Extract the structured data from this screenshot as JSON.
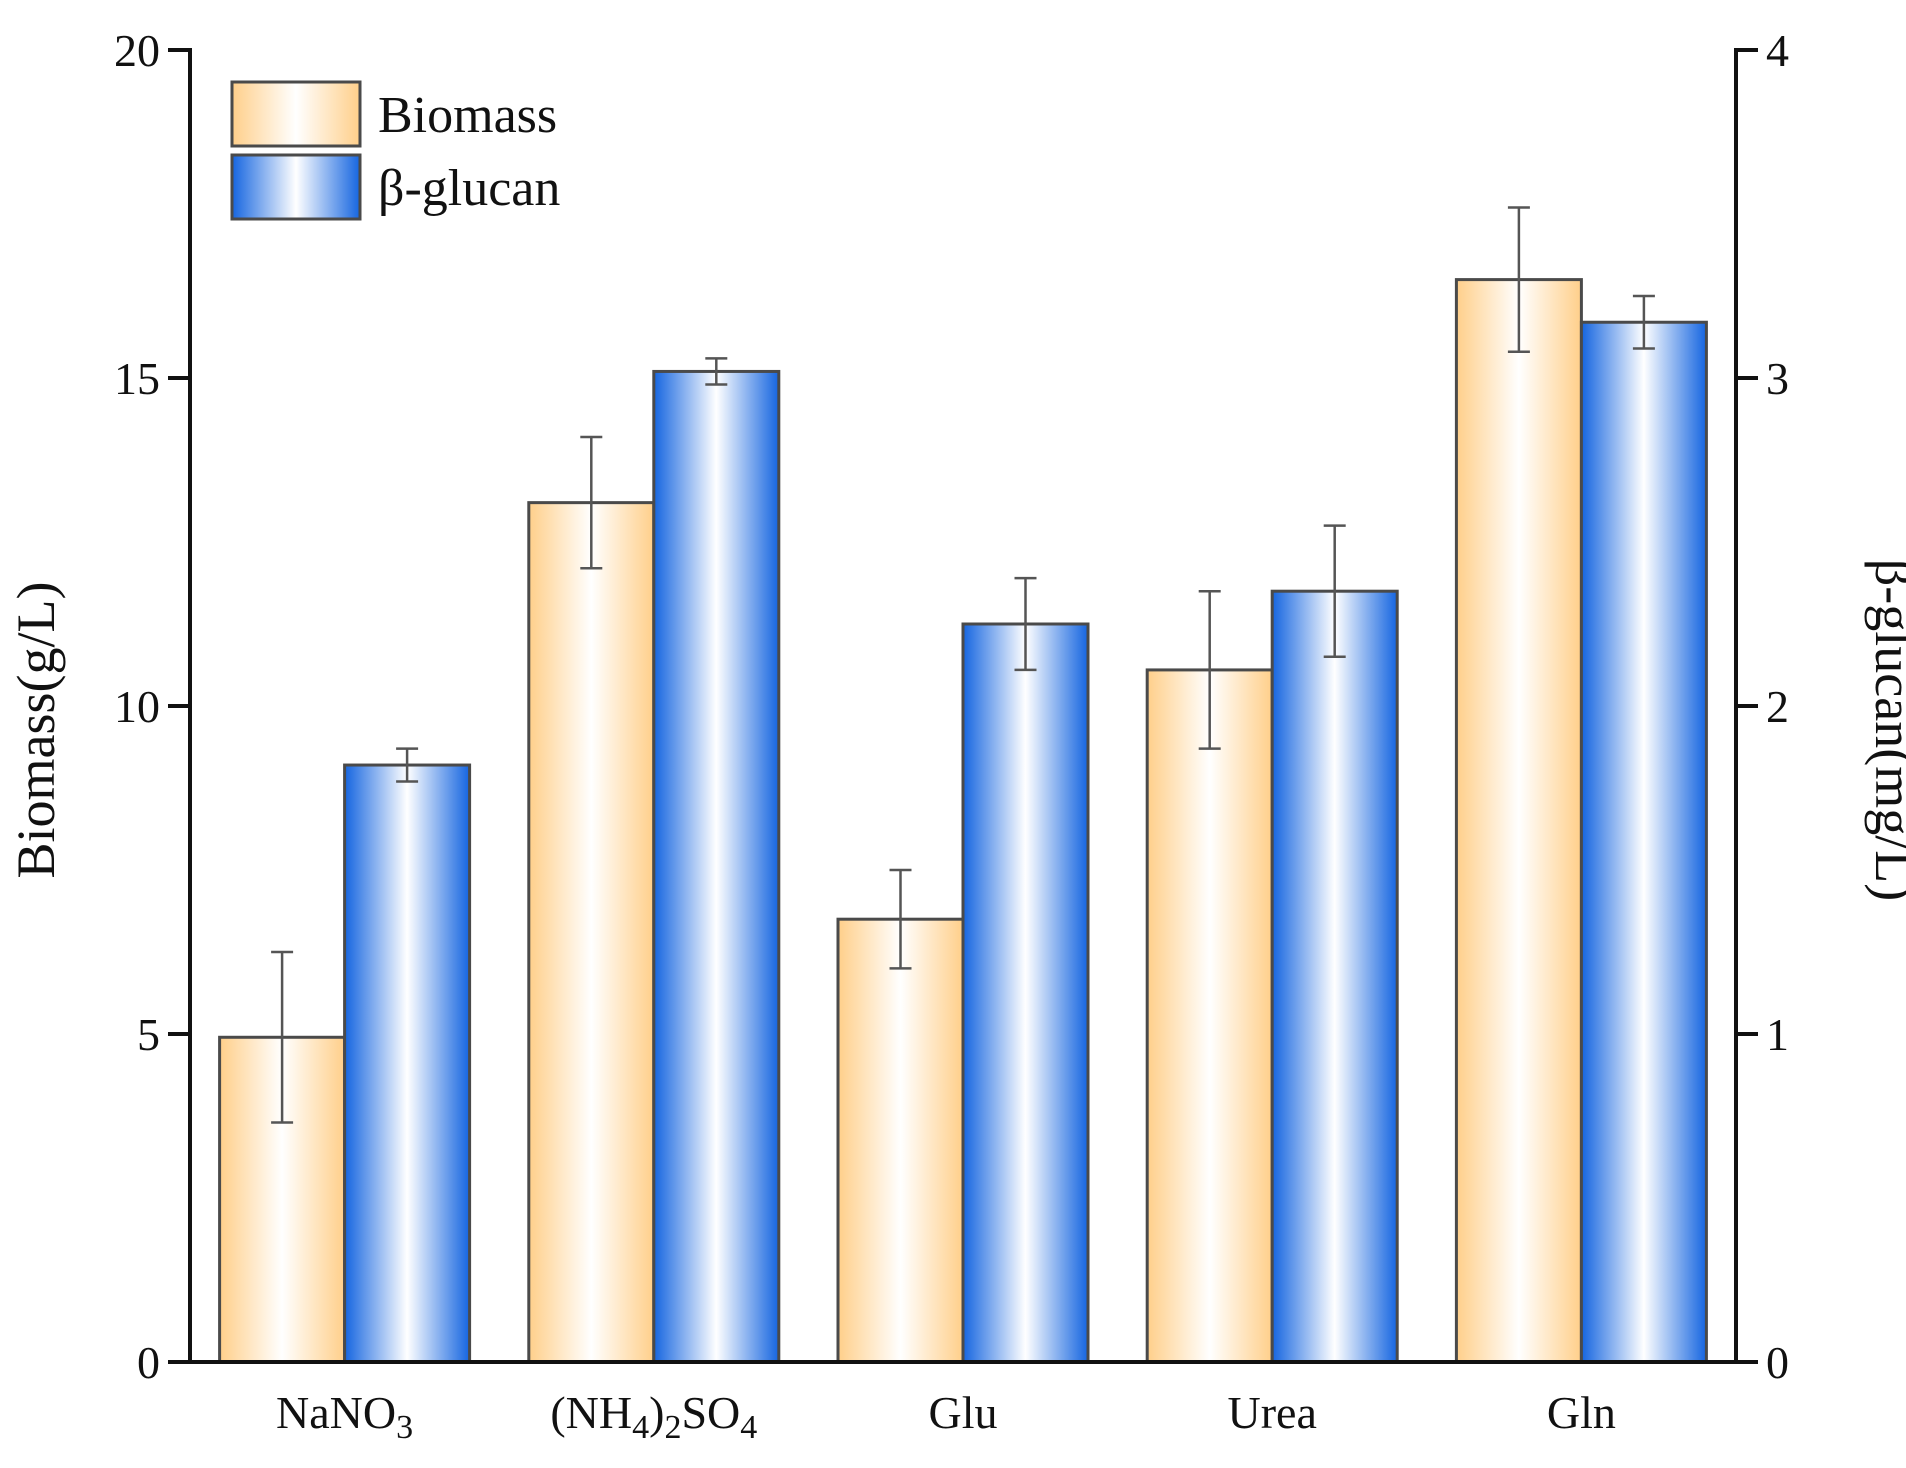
{
  "chart_data": {
    "type": "bar",
    "categories": [
      "NaNO3",
      "(NH4)2SO4",
      "Glu",
      "Urea",
      "Gln"
    ],
    "category_labels": [
      {
        "parts": [
          {
            "t": "NaNO",
            "s": "n"
          },
          {
            "t": "3",
            "s": "sub"
          }
        ]
      },
      {
        "parts": [
          {
            "t": "(NH",
            "s": "n"
          },
          {
            "t": "4",
            "s": "sub"
          },
          {
            "t": ")",
            "s": "n"
          },
          {
            "t": "2",
            "s": "sub"
          },
          {
            "t": "SO",
            "s": "n"
          },
          {
            "t": "4",
            "s": "sub"
          }
        ]
      },
      {
        "parts": [
          {
            "t": "Glu",
            "s": "n"
          }
        ]
      },
      {
        "parts": [
          {
            "t": "Urea",
            "s": "n"
          }
        ]
      },
      {
        "parts": [
          {
            "t": "Gln",
            "s": "n"
          }
        ]
      }
    ],
    "series": [
      {
        "name": "Biomass",
        "axis": "left",
        "values": [
          4.95,
          13.1,
          6.75,
          10.55,
          16.5
        ],
        "errors": [
          1.3,
          1.0,
          0.75,
          1.2,
          1.1
        ],
        "colors": [
          "#FFCF8A",
          "#FFFFFF"
        ]
      },
      {
        "name": "β-glucan",
        "axis": "right",
        "values": [
          1.82,
          3.02,
          2.25,
          2.35,
          3.17
        ],
        "errors": [
          0.05,
          0.04,
          0.14,
          0.2,
          0.08
        ],
        "colors": [
          "#1565E0",
          "#FFFFFF"
        ]
      }
    ],
    "left_axis": {
      "label": "Biomass(g/L)",
      "ylim": [
        0,
        20
      ],
      "ticks": [
        0,
        5,
        10,
        15,
        20
      ]
    },
    "right_axis": {
      "label": "β-glucan(mg/L)",
      "ylim": [
        0,
        4
      ],
      "ticks": [
        0,
        1,
        2,
        3,
        4
      ]
    },
    "legend_position": "top-left",
    "grid": false
  }
}
